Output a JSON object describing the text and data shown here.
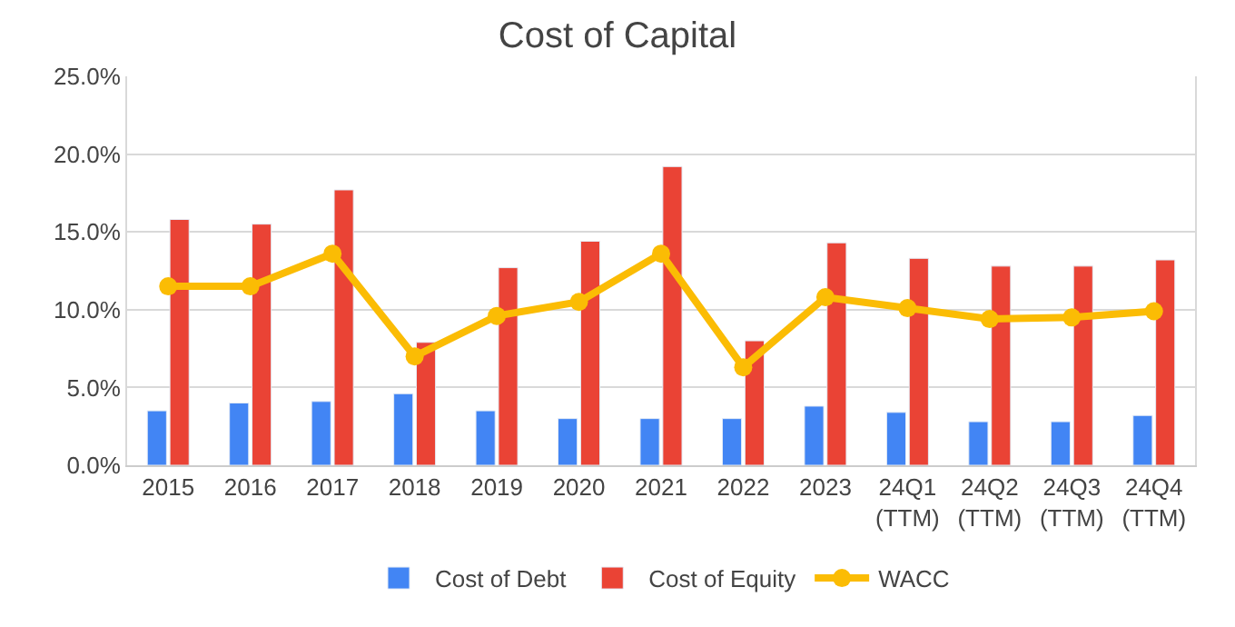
{
  "chart_data": {
    "type": "bar",
    "title": "Cost of Capital",
    "categories": [
      "2015",
      "2016",
      "2017",
      "2018",
      "2019",
      "2020",
      "2021",
      "2022",
      "2023",
      "24Q1\n(TTM)",
      "24Q2\n(TTM)",
      "24Q3\n(TTM)",
      "24Q4\n(TTM)"
    ],
    "series": [
      {
        "name": "Cost of Debt",
        "color": "#4285f4",
        "values": [
          3.5,
          4.0,
          4.1,
          4.6,
          3.5,
          3.0,
          3.0,
          3.0,
          3.8,
          3.4,
          2.8,
          2.8,
          3.2
        ]
      },
      {
        "name": "Cost of Equity",
        "color": "#ea4335",
        "values": [
          15.8,
          15.5,
          17.7,
          7.9,
          12.7,
          14.4,
          19.2,
          8.0,
          14.3,
          13.3,
          12.8,
          12.8,
          13.2
        ]
      },
      {
        "name": "WACC",
        "type": "line",
        "color": "#fbbc04",
        "marker": "circle",
        "values": [
          11.5,
          11.5,
          13.6,
          7.0,
          9.6,
          10.5,
          13.6,
          6.3,
          10.8,
          10.1,
          9.4,
          9.5,
          9.9
        ]
      }
    ],
    "ylim": [
      0,
      25
    ],
    "yticks": [
      {
        "value": 0,
        "label": "0.0%"
      },
      {
        "value": 5,
        "label": "5.0%"
      },
      {
        "value": 10,
        "label": "10.0%"
      },
      {
        "value": 15,
        "label": "15.0%"
      },
      {
        "value": 20,
        "label": "20.0%"
      },
      {
        "value": 25,
        "label": "25.0%"
      }
    ],
    "grid": "y",
    "legend": "bottom"
  }
}
